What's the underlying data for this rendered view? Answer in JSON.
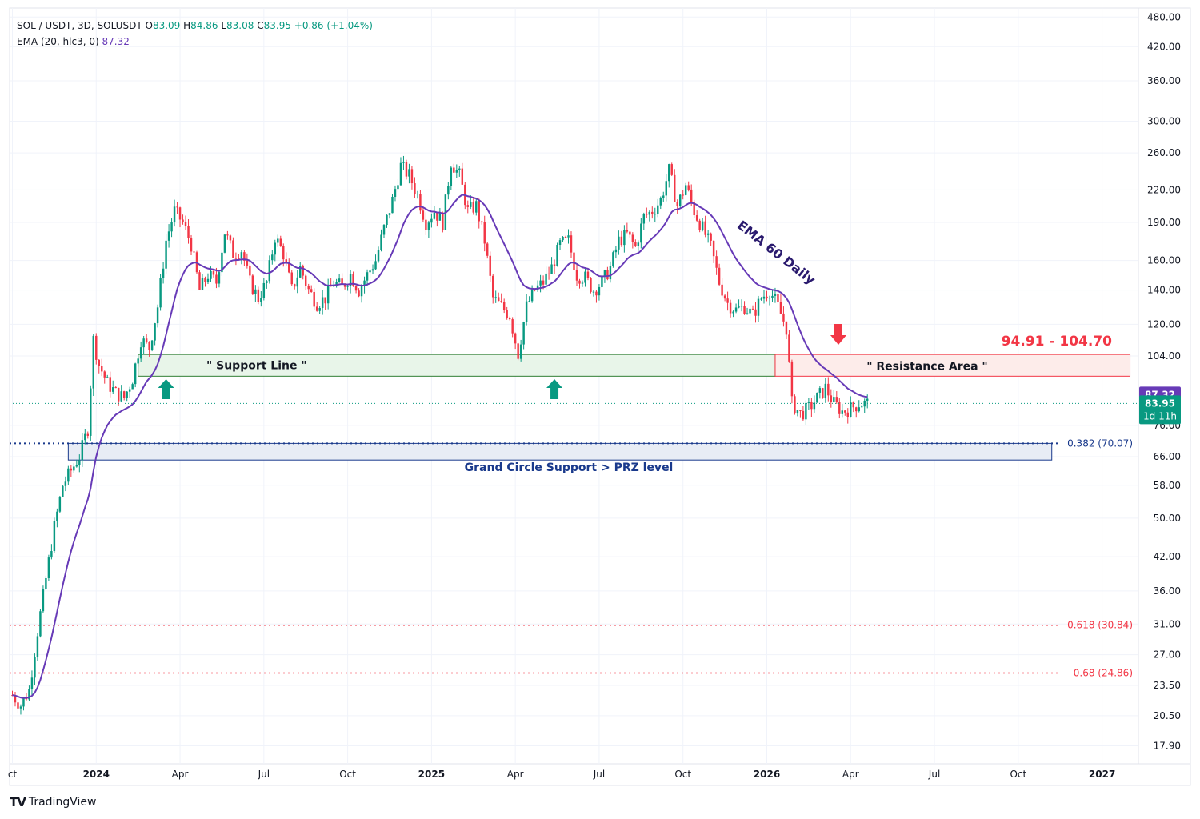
{
  "header": {
    "symbol": "SOL / USDT, 3D, SOLUSDT",
    "o_label": "O",
    "o_value": "83.09",
    "h_label": "H",
    "h_value": "84.86",
    "l_label": "L",
    "l_value": "83.08",
    "c_label": "C",
    "c_value": "83.95",
    "change": "+0.86 (+1.04%)",
    "ema_label": "EMA (20, hlc3, 0)",
    "ema_value": "87.32"
  },
  "colors": {
    "up": "#089981",
    "down": "#f23645",
    "ema": "#673ab7",
    "support_fill": "#e8f5e9",
    "support_stroke": "#2e7d32",
    "resistance_fill": "#fdecea",
    "resistance_stroke": "#f23645",
    "prz_fill": "#e8ecf5",
    "prz_stroke": "#1a3a8c",
    "fib_blue": "#1a3a8c",
    "fib_red": "#f23645",
    "grid": "#f0f3fa"
  },
  "chart_data": {
    "type": "candlestick",
    "title": "SOL / USDT, 3D, SOLUSDT",
    "scale": "log",
    "ylim": [
      16.5,
      500
    ],
    "y_ticks": [
      "480.00",
      "420.00",
      "360.00",
      "300.00",
      "260.00",
      "220.00",
      "190.00",
      "160.00",
      "140.00",
      "120.00",
      "104.00",
      "76.00",
      "66.00",
      "58.00",
      "50.00",
      "42.00",
      "36.00",
      "31.00",
      "27.00",
      "23.50",
      "20.50",
      "17.90"
    ],
    "x_ticks": [
      {
        "label": "ct",
        "bold": false,
        "t": 0.0
      },
      {
        "label": "2024",
        "bold": true,
        "t": 3.0
      },
      {
        "label": "Apr",
        "bold": false,
        "t": 6.0
      },
      {
        "label": "Jul",
        "bold": false,
        "t": 9.0
      },
      {
        "label": "Oct",
        "bold": false,
        "t": 12.0
      },
      {
        "label": "2025",
        "bold": true,
        "t": 15.0
      },
      {
        "label": "Apr",
        "bold": false,
        "t": 18.0
      },
      {
        "label": "Jul",
        "bold": false,
        "t": 21.0
      },
      {
        "label": "Oct",
        "bold": false,
        "t": 24.0
      },
      {
        "label": "2026",
        "bold": true,
        "t": 27.0
      },
      {
        "label": "Apr",
        "bold": false,
        "t": 30.0
      },
      {
        "label": "Jul",
        "bold": false,
        "t": 33.0
      },
      {
        "label": "Oct",
        "bold": false,
        "t": 36.0
      },
      {
        "label": "2027",
        "bold": true,
        "t": 39.0
      }
    ],
    "x_unit": "months since Oct 2023",
    "price_path": [
      [
        0.0,
        22.5
      ],
      [
        0.3,
        21.5
      ],
      [
        0.6,
        23.0
      ],
      [
        0.9,
        30.0
      ],
      [
        1.2,
        38.0
      ],
      [
        1.5,
        48.0
      ],
      [
        1.8,
        58.0
      ],
      [
        2.1,
        62.0
      ],
      [
        2.4,
        66.0
      ],
      [
        2.7,
        75.0
      ],
      [
        2.9,
        112.0
      ],
      [
        3.1,
        100.0
      ],
      [
        3.4,
        92.0
      ],
      [
        3.7,
        88.0
      ],
      [
        4.0,
        86.0
      ],
      [
        4.3,
        94.0
      ],
      [
        4.6,
        112.0
      ],
      [
        4.9,
        108.0
      ],
      [
        5.2,
        130.0
      ],
      [
        5.5,
        175.0
      ],
      [
        5.8,
        200.0
      ],
      [
        6.1,
        190.0
      ],
      [
        6.4,
        172.0
      ],
      [
        6.7,
        140.0
      ],
      [
        7.0,
        150.0
      ],
      [
        7.3,
        145.0
      ],
      [
        7.6,
        182.0
      ],
      [
        7.9,
        165.0
      ],
      [
        8.2,
        168.0
      ],
      [
        8.5,
        145.0
      ],
      [
        8.8,
        135.0
      ],
      [
        9.1,
        145.0
      ],
      [
        9.4,
        178.0
      ],
      [
        9.7,
        165.0
      ],
      [
        10.0,
        140.0
      ],
      [
        10.3,
        155.0
      ],
      [
        10.6,
        140.0
      ],
      [
        10.9,
        132.0
      ],
      [
        11.2,
        135.0
      ],
      [
        11.5,
        145.0
      ],
      [
        11.8,
        142.0
      ],
      [
        12.1,
        150.0
      ],
      [
        12.4,
        140.0
      ],
      [
        12.7,
        150.0
      ],
      [
        13.0,
        160.0
      ],
      [
        13.3,
        185.0
      ],
      [
        13.6,
        210.0
      ],
      [
        13.9,
        245.0
      ],
      [
        14.2,
        235.0
      ],
      [
        14.5,
        215.0
      ],
      [
        14.8,
        190.0
      ],
      [
        15.1,
        200.0
      ],
      [
        15.4,
        190.0
      ],
      [
        15.7,
        250.0
      ],
      [
        16.0,
        235.0
      ],
      [
        16.3,
        200.0
      ],
      [
        16.6,
        205.0
      ],
      [
        16.9,
        175.0
      ],
      [
        17.2,
        135.0
      ],
      [
        17.5,
        130.0
      ],
      [
        17.8,
        125.0
      ],
      [
        18.1,
        105.0
      ],
      [
        18.4,
        130.0
      ],
      [
        18.7,
        140.0
      ],
      [
        19.0,
        145.0
      ],
      [
        19.3,
        155.0
      ],
      [
        19.6,
        172.0
      ],
      [
        19.9,
        175.0
      ],
      [
        20.2,
        150.0
      ],
      [
        20.5,
        148.0
      ],
      [
        20.8,
        140.0
      ],
      [
        21.1,
        145.0
      ],
      [
        21.4,
        155.0
      ],
      [
        21.7,
        175.0
      ],
      [
        22.0,
        180.0
      ],
      [
        22.3,
        170.0
      ],
      [
        22.6,
        195.0
      ],
      [
        22.9,
        200.0
      ],
      [
        23.2,
        210.0
      ],
      [
        23.5,
        240.0
      ],
      [
        23.8,
        205.0
      ],
      [
        24.1,
        225.0
      ],
      [
        24.4,
        200.0
      ],
      [
        24.7,
        185.0
      ],
      [
        25.0,
        170.0
      ],
      [
        25.3,
        145.0
      ],
      [
        25.6,
        132.0
      ],
      [
        25.9,
        128.0
      ],
      [
        26.2,
        130.0
      ],
      [
        26.5,
        125.0
      ],
      [
        26.8,
        135.0
      ],
      [
        27.1,
        140.0
      ],
      [
        27.4,
        130.0
      ],
      [
        27.7,
        118.0
      ],
      [
        27.9,
        84.0
      ],
      [
        28.2,
        80.0
      ],
      [
        28.5,
        82.0
      ],
      [
        28.8,
        86.0
      ],
      [
        29.1,
        90.0
      ],
      [
        29.4,
        84.0
      ],
      [
        29.7,
        81.0
      ],
      [
        30.0,
        82.0
      ],
      [
        30.3,
        84.0
      ],
      [
        30.6,
        83.9
      ]
    ],
    "ema_label": "EMA (20, hlc3, 0)",
    "ema_last": 87.32,
    "last_price": 83.95,
    "countdown": "1d 11h",
    "zones": [
      {
        "name": "support",
        "label": "\" Support Line \"",
        "low": 94.91,
        "high": 104.7,
        "t0": 4.5,
        "t1": 27.3
      },
      {
        "name": "resistance",
        "label": "\" Resistance Area  \"",
        "low": 94.91,
        "high": 104.7,
        "t0": 27.3,
        "t1": 40.0
      },
      {
        "name": "prz",
        "label": "Grand Circle Support > PRZ level",
        "low": 65.0,
        "high": 70.07,
        "t0": 2.0,
        "t1": 37.2
      }
    ],
    "levels": [
      {
        "label": "0.382 (70.07)",
        "value": 70.07,
        "color": "blue"
      },
      {
        "label": "0.618 (30.84)",
        "value": 30.84,
        "color": "red"
      },
      {
        "label": "0.68 (24.86)",
        "value": 24.86,
        "color": "red"
      }
    ],
    "range_label": "94.91 - 104.70",
    "annotations": [
      {
        "text": "EMA 60 Daily",
        "t": 27.0,
        "price": 165
      }
    ],
    "arrows": [
      {
        "dir": "up",
        "t": 5.5,
        "price": 80
      },
      {
        "dir": "up",
        "t": 19.4,
        "price": 80
      },
      {
        "dir": "down",
        "t": 30.5,
        "price": 112
      }
    ]
  },
  "footer": {
    "brand": "TradingView"
  }
}
